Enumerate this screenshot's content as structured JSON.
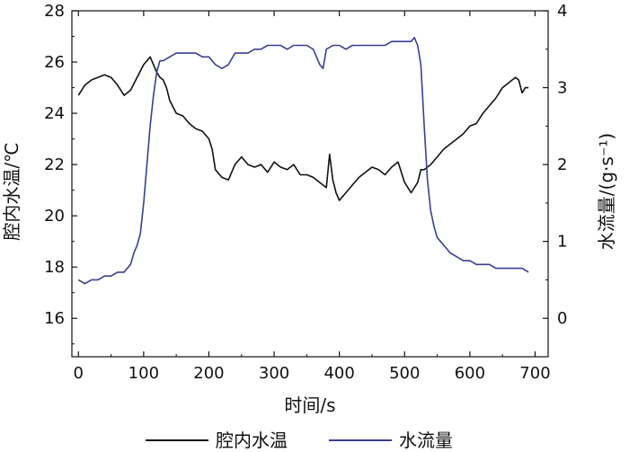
{
  "chart_data": {
    "type": "line",
    "xlabel": "时间/s",
    "ylabel_left": "腔内水温/℃",
    "ylabel_right": "水流量/(g·s⁻¹)",
    "xlim": [
      -10,
      720
    ],
    "ylim_left": [
      14.5,
      28
    ],
    "ylim_right": [
      -0.5,
      4
    ],
    "xticks": [
      0,
      100,
      200,
      300,
      400,
      500,
      600,
      700
    ],
    "yticks_left": [
      16,
      18,
      20,
      22,
      24,
      26,
      28
    ],
    "yticks_right": [
      0,
      1,
      2,
      3,
      4
    ],
    "grid": false,
    "legend_position": "bottom",
    "series": [
      {
        "name": "腔内水温",
        "axis": "left",
        "color": "#111111",
        "x": [
          0,
          10,
          20,
          30,
          40,
          50,
          60,
          70,
          80,
          90,
          100,
          110,
          115,
          120,
          125,
          130,
          135,
          140,
          150,
          160,
          170,
          180,
          190,
          200,
          205,
          210,
          220,
          230,
          240,
          250,
          260,
          270,
          280,
          290,
          300,
          310,
          320,
          330,
          340,
          350,
          360,
          370,
          380,
          385,
          390,
          395,
          400,
          410,
          420,
          430,
          440,
          450,
          460,
          470,
          480,
          490,
          500,
          510,
          520,
          525,
          530,
          540,
          550,
          560,
          570,
          580,
          590,
          600,
          610,
          620,
          630,
          640,
          650,
          660,
          670,
          675,
          680,
          685,
          690
        ],
        "values": [
          24.7,
          25.1,
          25.3,
          25.4,
          25.5,
          25.4,
          25.1,
          24.7,
          24.9,
          25.4,
          25.9,
          26.2,
          25.9,
          25.6,
          25.4,
          25.3,
          25.0,
          24.5,
          24.0,
          23.9,
          23.6,
          23.4,
          23.3,
          23.0,
          22.6,
          21.8,
          21.5,
          21.4,
          22.0,
          22.3,
          22.0,
          21.9,
          22.0,
          21.7,
          22.1,
          21.9,
          21.8,
          22.0,
          21.6,
          21.6,
          21.5,
          21.3,
          21.1,
          22.4,
          21.4,
          20.9,
          20.6,
          20.9,
          21.2,
          21.5,
          21.7,
          21.9,
          21.8,
          21.6,
          21.9,
          22.1,
          21.3,
          20.9,
          21.3,
          21.8,
          21.8,
          22.0,
          22.3,
          22.6,
          22.8,
          23.0,
          23.2,
          23.5,
          23.6,
          24.0,
          24.3,
          24.6,
          25.0,
          25.2,
          25.4,
          25.3,
          24.8,
          25.0,
          25.0
        ]
      },
      {
        "name": "水流量",
        "axis": "right",
        "color": "#3a3f8f",
        "x": [
          0,
          10,
          20,
          30,
          40,
          50,
          60,
          70,
          80,
          85,
          90,
          95,
          100,
          105,
          110,
          115,
          120,
          125,
          130,
          140,
          150,
          160,
          170,
          180,
          190,
          200,
          210,
          220,
          230,
          240,
          250,
          260,
          270,
          280,
          290,
          300,
          310,
          320,
          330,
          340,
          350,
          360,
          370,
          375,
          380,
          390,
          400,
          410,
          420,
          430,
          440,
          450,
          460,
          470,
          480,
          490,
          500,
          510,
          515,
          520,
          525,
          530,
          535,
          540,
          545,
          550,
          555,
          560,
          570,
          580,
          590,
          600,
          610,
          620,
          630,
          640,
          650,
          660,
          670,
          680,
          690
        ],
        "values": [
          0.5,
          0.45,
          0.5,
          0.5,
          0.55,
          0.55,
          0.6,
          0.6,
          0.7,
          0.85,
          0.95,
          1.1,
          1.5,
          2.0,
          2.5,
          2.9,
          3.2,
          3.35,
          3.35,
          3.4,
          3.45,
          3.45,
          3.45,
          3.45,
          3.4,
          3.4,
          3.3,
          3.25,
          3.3,
          3.45,
          3.45,
          3.45,
          3.5,
          3.5,
          3.55,
          3.55,
          3.55,
          3.5,
          3.55,
          3.55,
          3.55,
          3.5,
          3.3,
          3.25,
          3.5,
          3.55,
          3.55,
          3.5,
          3.55,
          3.55,
          3.55,
          3.55,
          3.55,
          3.55,
          3.6,
          3.6,
          3.6,
          3.6,
          3.65,
          3.55,
          3.3,
          2.5,
          1.8,
          1.4,
          1.2,
          1.05,
          1.0,
          0.95,
          0.85,
          0.8,
          0.75,
          0.75,
          0.7,
          0.7,
          0.7,
          0.65,
          0.65,
          0.65,
          0.65,
          0.65,
          0.6
        ]
      }
    ]
  }
}
